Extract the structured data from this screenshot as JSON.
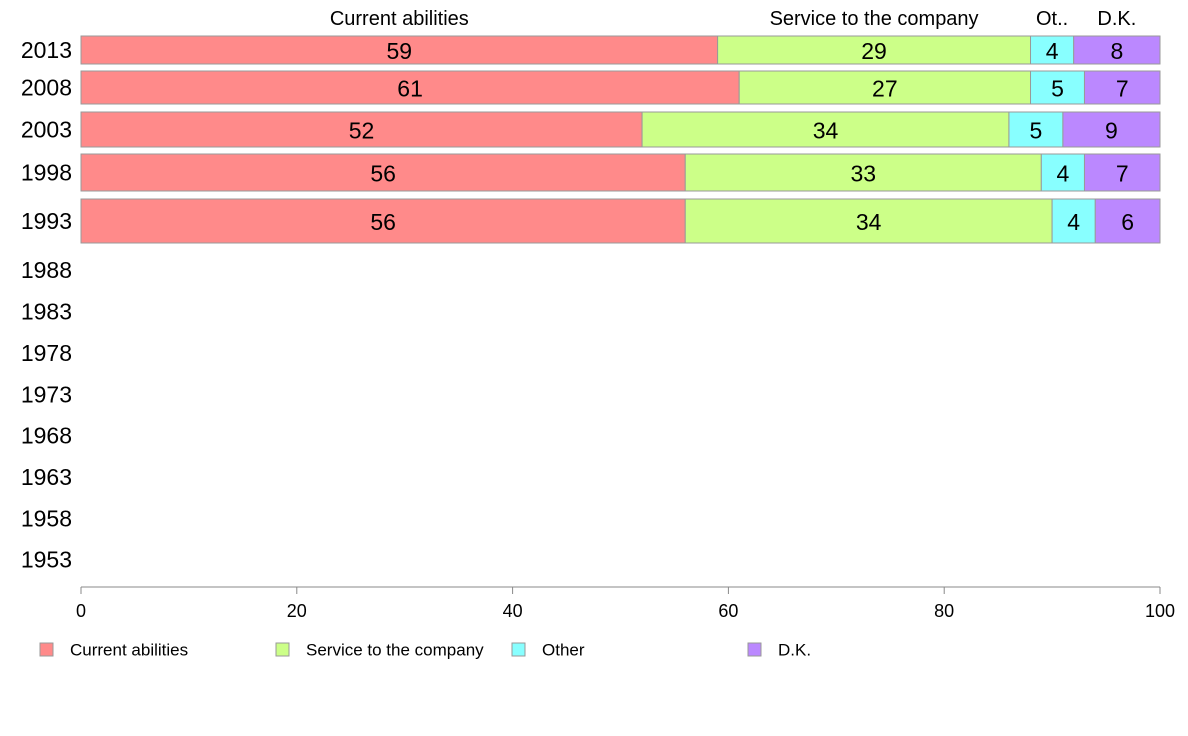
{
  "chart_data": {
    "type": "bar",
    "orientation": "horizontal",
    "stacked": true,
    "categories": [
      "2013",
      "2008",
      "2003",
      "1998",
      "1993",
      "1988",
      "1983",
      "1978",
      "1973",
      "1968",
      "1963",
      "1958",
      "1953"
    ],
    "series": [
      {
        "name": "Current abilities",
        "color": "#FF8A8A",
        "values": [
          59,
          61,
          52,
          56,
          56,
          null,
          null,
          null,
          null,
          null,
          null,
          null,
          null
        ]
      },
      {
        "name": "Service to the company",
        "color": "#CCFF88",
        "values": [
          29,
          27,
          34,
          33,
          34,
          null,
          null,
          null,
          null,
          null,
          null,
          null,
          null
        ]
      },
      {
        "name": "Other",
        "color": "#88FFFF",
        "values": [
          4,
          5,
          5,
          4,
          4,
          null,
          null,
          null,
          null,
          null,
          null,
          null,
          null
        ]
      },
      {
        "name": "D.K.",
        "color": "#BB88FF",
        "values": [
          8,
          7,
          9,
          7,
          6,
          null,
          null,
          null,
          null,
          null,
          null,
          null,
          null
        ]
      }
    ],
    "top_labels": [
      "Current abilities",
      "Service to the company",
      "Ot..",
      "D.K."
    ],
    "xlim": [
      0,
      100
    ],
    "xticks": [
      0,
      20,
      40,
      60,
      80,
      100
    ],
    "grid": false,
    "legend_position": "bottom"
  }
}
